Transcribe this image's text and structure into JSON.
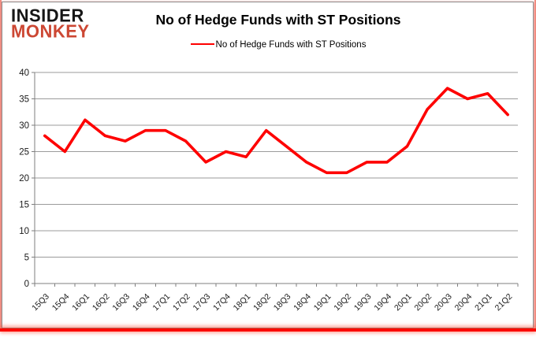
{
  "branding": {
    "line1": "INSIDER",
    "line2": "MONKEY"
  },
  "header": {
    "title": "No of Hedge Funds with ST Positions"
  },
  "legend": {
    "label": "No of Hedge Funds with ST Positions"
  },
  "colors": {
    "series": "#fe0000",
    "logo_top": "#161616",
    "logo_accent": "#cc4733",
    "gridline": "#9b9b9b",
    "axis": "#7f7f7f",
    "tick_label": "#1a1a1a",
    "chart_border": "#8a8a8a",
    "frame_red": "#fb0a00"
  },
  "chart_data": {
    "type": "line",
    "title": "No of Hedge Funds with ST Positions",
    "categories": [
      "15Q3",
      "15Q4",
      "16Q1",
      "16Q2",
      "16Q3",
      "16Q4",
      "17Q1",
      "17Q2",
      "17Q3",
      "17Q4",
      "18Q1",
      "18Q2",
      "18Q3",
      "18Q4",
      "19Q1",
      "19Q2",
      "19Q3",
      "19Q4",
      "20Q1",
      "20Q2",
      "20Q3",
      "20Q4",
      "21Q1",
      "21Q2"
    ],
    "series": [
      {
        "name": "No of Hedge Funds with ST Positions",
        "color": "#fe0000",
        "values": [
          28,
          25,
          31,
          28,
          27,
          29,
          29,
          27,
          23,
          25,
          24,
          29,
          26,
          23,
          21,
          21,
          23,
          23,
          26,
          33,
          37,
          35,
          36,
          32
        ]
      }
    ],
    "ylim": [
      0,
      40
    ],
    "yticks": [
      0,
      5,
      10,
      15,
      20,
      25,
      30,
      35,
      40
    ],
    "grid": true,
    "legend_position": "top",
    "xlabel": "",
    "ylabel": ""
  }
}
